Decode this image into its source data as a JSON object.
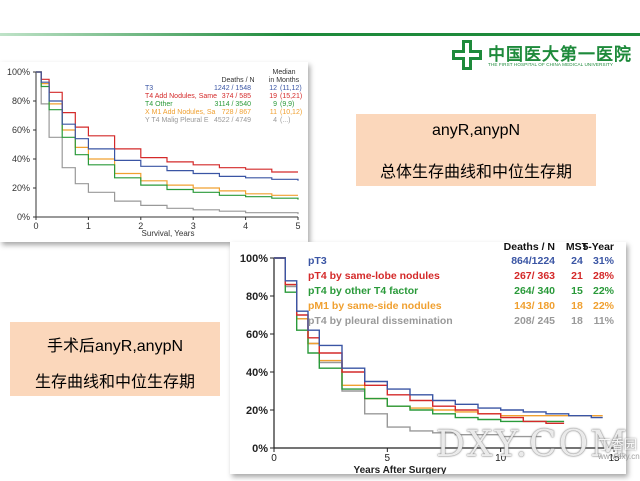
{
  "logo": {
    "name": "中国医大第一医院",
    "subtitle": "THE FIRST HOSPITAL OF CHINA MEDICAL UNIVERSITY"
  },
  "callouts": [
    {
      "line1": "anyR,anypN",
      "line2": "总体生存曲线和中位生存期"
    },
    {
      "line1": "手术后anyR,anypN",
      "line2": "生存曲线和中位生存期"
    }
  ],
  "watermark": {
    "text": "DXY.COM",
    "cn": "丁香园",
    "url": "www.dxy.cn"
  },
  "chart_data": [
    {
      "type": "line",
      "title": "",
      "xlabel": "Survival, Years",
      "ylabel": "",
      "xlim": [
        0,
        5
      ],
      "ylim": [
        0,
        100
      ],
      "x_ticks": [
        "0",
        "1",
        "2",
        "3",
        "4",
        "5"
      ],
      "y_ticks": [
        "0%",
        "20%",
        "40%",
        "60%",
        "80%",
        "100%"
      ],
      "legend_headers": {
        "deaths": "Deaths / N",
        "median": "Median",
        "median_sub": "in Months"
      },
      "series": [
        {
          "name": "T3",
          "color": "#3a55a4",
          "deaths_n": "1242 / 1548",
          "median": "12",
          "ci": "(11,12)",
          "x": [
            0,
            0.1,
            0.25,
            0.5,
            0.75,
            1,
            1.5,
            2,
            2.5,
            3,
            3.5,
            4,
            4.5,
            5
          ],
          "y": [
            100,
            93,
            80,
            64,
            54,
            47,
            39,
            35,
            32,
            30,
            28,
            27,
            26,
            25
          ]
        },
        {
          "name": "T4 Add Nodules, Same",
          "color": "#d42a2a",
          "deaths_n": "374 / 585",
          "median": "19",
          "ci": "(15,21)",
          "x": [
            0,
            0.1,
            0.25,
            0.5,
            0.75,
            1,
            1.5,
            2,
            2.5,
            3,
            3.5,
            4,
            4.5,
            5
          ],
          "y": [
            100,
            95,
            86,
            72,
            62,
            56,
            47,
            41,
            38,
            36,
            34,
            33,
            31,
            31
          ]
        },
        {
          "name": "T4 Other",
          "color": "#2a9a3a",
          "deaths_n": "3114 / 3540",
          "median": "9",
          "ci": "(9,9)",
          "x": [
            0,
            0.1,
            0.25,
            0.5,
            0.75,
            1,
            1.5,
            2,
            2.5,
            3,
            3.5,
            4,
            4.5,
            5
          ],
          "y": [
            100,
            90,
            74,
            55,
            43,
            36,
            27,
            22,
            19,
            17,
            15,
            14,
            13,
            12
          ]
        },
        {
          "name": "X M1 Add Nodules, Sa",
          "color": "#f0a030",
          "deaths_n": "728 / 867",
          "median": "11",
          "ci": "(10,12)",
          "x": [
            0,
            0.1,
            0.25,
            0.5,
            0.75,
            1,
            1.5,
            2,
            2.5,
            3,
            3.5,
            4,
            4.5,
            5
          ],
          "y": [
            100,
            92,
            78,
            60,
            48,
            40,
            30,
            25,
            22,
            20,
            18,
            16,
            15,
            15
          ]
        },
        {
          "name": "Y T4 Malig Pleural E",
          "color": "#999999",
          "deaths_n": "4522 / 4749",
          "median": "4",
          "ci": "(...)",
          "x": [
            0,
            0.1,
            0.25,
            0.5,
            0.75,
            1,
            1.5,
            2,
            2.5,
            3,
            3.5,
            4,
            4.5,
            5
          ],
          "y": [
            100,
            78,
            55,
            34,
            23,
            17,
            11,
            8,
            6,
            5,
            4,
            3,
            3,
            2
          ]
        }
      ]
    },
    {
      "type": "line",
      "title": "",
      "xlabel": "Years After Surgery",
      "ylabel": "",
      "xlim": [
        0,
        15
      ],
      "ylim": [
        0,
        100
      ],
      "x_ticks": [
        "0",
        "5",
        "10",
        "15"
      ],
      "y_ticks": [
        "0%",
        "20%",
        "40%",
        "60%",
        "80%",
        "100%"
      ],
      "legend_headers": {
        "deaths": "Deaths / N",
        "mst": "MST",
        "five_year": "5-Year"
      },
      "series": [
        {
          "name": "pT3",
          "color": "#3a55a4",
          "deaths_n": "864/1224",
          "mst": "24",
          "five_year": "31%",
          "x": [
            0,
            0.5,
            1,
            1.5,
            2,
            3,
            4,
            5,
            6,
            7,
            8,
            9,
            10,
            11,
            12,
            13,
            14
          ],
          "y": [
            100,
            88,
            72,
            62,
            54,
            42,
            35,
            31,
            28,
            25,
            23,
            21,
            20,
            19,
            18,
            17,
            16
          ]
        },
        {
          "name": "pT4 by same-lobe nodules",
          "color": "#d42a2a",
          "deaths_n": "267/ 363",
          "mst": "21",
          "five_year": "28%",
          "x": [
            0,
            0.5,
            1,
            1.5,
            2,
            3,
            4,
            5,
            6,
            7,
            8,
            9,
            10,
            11,
            12
          ],
          "y": [
            100,
            86,
            70,
            58,
            50,
            40,
            33,
            28,
            25,
            22,
            20,
            18,
            16,
            14,
            13
          ]
        },
        {
          "name": "pT4 by other T4 factor",
          "color": "#2a9a3a",
          "deaths_n": "264/ 340",
          "mst": "15",
          "five_year": "22%",
          "x": [
            0,
            0.5,
            1,
            1.5,
            2,
            3,
            4,
            5,
            6,
            7,
            8,
            9,
            10,
            11,
            12
          ],
          "y": [
            100,
            82,
            62,
            50,
            42,
            31,
            26,
            22,
            20,
            18,
            16,
            15,
            14,
            14,
            14
          ]
        },
        {
          "name": "pM1 by same-side nodules",
          "color": "#f0a030",
          "deaths_n": "143/ 180",
          "mst": "18",
          "five_year": "22%",
          "x": [
            0,
            0.5,
            1,
            1.5,
            2,
            3,
            4,
            5,
            6,
            7,
            8,
            9,
            10,
            11,
            12,
            13,
            14
          ],
          "y": [
            100,
            86,
            68,
            55,
            46,
            33,
            26,
            22,
            21,
            20,
            19,
            18,
            17,
            17,
            17,
            17,
            17
          ]
        },
        {
          "name": "pT4 by pleural dissemination",
          "color": "#999999",
          "deaths_n": "208/ 245",
          "mst": "18",
          "five_year": "11%",
          "x": [
            0,
            0.5,
            1,
            1.5,
            2,
            3,
            4,
            5,
            6,
            7,
            8,
            9,
            10,
            11
          ],
          "y": [
            100,
            85,
            68,
            55,
            45,
            30,
            18,
            11,
            9,
            8,
            7,
            7,
            6,
            6
          ]
        }
      ]
    }
  ]
}
